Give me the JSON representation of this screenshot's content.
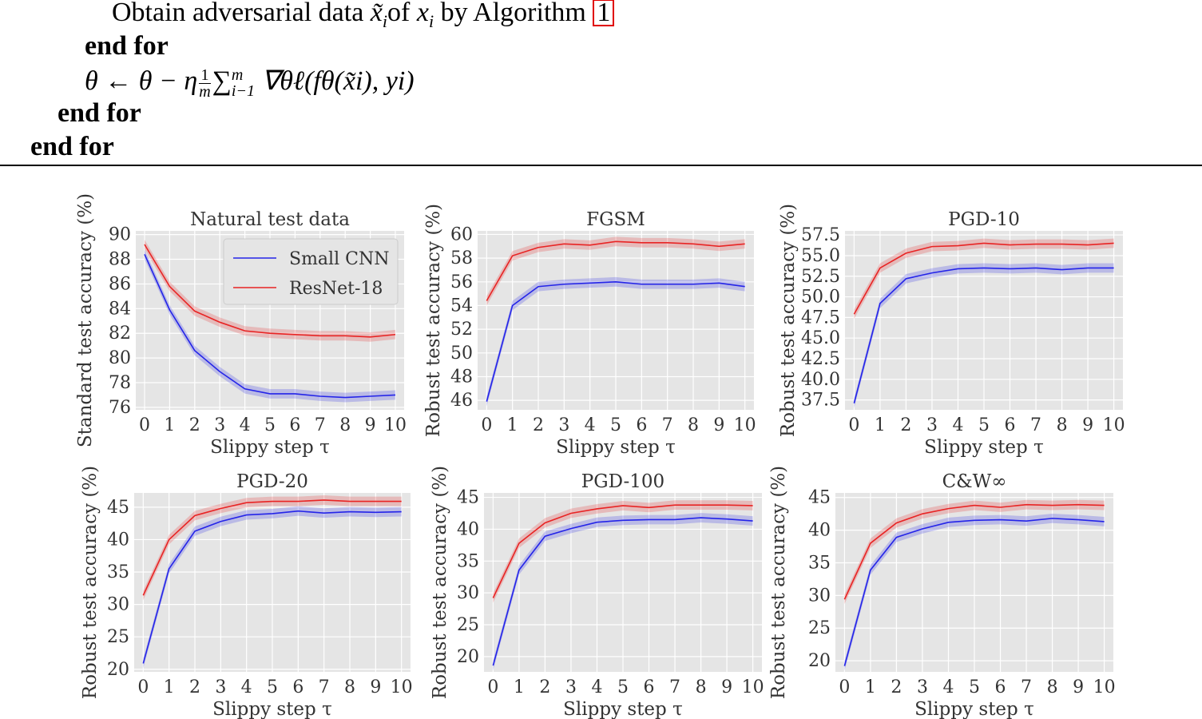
{
  "algorithm": {
    "line1_prefix": "Obtain adversarial data ",
    "line1_var": "x̃",
    "line1_sub": "i",
    "line1_mid": "of ",
    "line1_x": "x",
    "line1_xsub": "i",
    "line1_by": " by Algorithm ",
    "line1_ref": "1",
    "end_for_1": "end for",
    "update_rule": "θ ← θ − η",
    "frac_num": "1",
    "frac_den": "m",
    "sum": "∑",
    "sum_sup": "m",
    "sum_sub": "i−1",
    "update_tail": " ∇θℓ(fθ(x̃i), yi)",
    "end_for_2": "end for",
    "end_for_3": "end for"
  },
  "colors": {
    "small_cnn": "#2424e8",
    "resnet18": "#e82424",
    "plot_bg": "#e5e5e5",
    "grid": "#ffffff"
  },
  "chart_data": [
    {
      "type": "line",
      "title": "Natural test data",
      "xlabel": "Slippy step τ",
      "ylabel": "Standard test accuracy (%)",
      "x": [
        0,
        1,
        2,
        3,
        4,
        5,
        6,
        7,
        8,
        9,
        10
      ],
      "ylim": [
        75.8,
        90.3
      ],
      "yticks": [
        "76",
        "78",
        "80",
        "82",
        "84",
        "86",
        "88",
        "90"
      ],
      "ytick_values": [
        76,
        78,
        80,
        82,
        84,
        86,
        88,
        90
      ],
      "legend": "top-right",
      "series": [
        {
          "name": "Small CNN",
          "color": "#2424e8",
          "values": [
            88.4,
            83.9,
            80.6,
            78.9,
            77.5,
            77.1,
            77.1,
            76.9,
            76.8,
            76.9,
            77.0
          ]
        },
        {
          "name": "ResNet-18",
          "color": "#e82424",
          "values": [
            89.2,
            85.8,
            83.8,
            82.9,
            82.2,
            82.0,
            81.9,
            81.8,
            81.8,
            81.7,
            81.9
          ]
        }
      ]
    },
    {
      "type": "line",
      "title": "FGSM",
      "xlabel": "Slippy step τ",
      "ylabel": "Robust test accuracy (%)",
      "x": [
        0,
        1,
        2,
        3,
        4,
        5,
        6,
        7,
        8,
        9,
        10
      ],
      "ylim": [
        45.2,
        60.3
      ],
      "yticks": [
        "46",
        "48",
        "50",
        "52",
        "54",
        "56",
        "58",
        "60"
      ],
      "ytick_values": [
        46,
        48,
        50,
        52,
        54,
        56,
        58,
        60
      ],
      "series": [
        {
          "name": "Small CNN",
          "color": "#2424e8",
          "values": [
            45.9,
            54.0,
            55.6,
            55.8,
            55.9,
            56.0,
            55.8,
            55.8,
            55.8,
            55.9,
            55.6
          ]
        },
        {
          "name": "ResNet-18",
          "color": "#e82424",
          "values": [
            54.4,
            58.2,
            58.9,
            59.2,
            59.1,
            59.4,
            59.3,
            59.3,
            59.2,
            59.0,
            59.2
          ]
        }
      ]
    },
    {
      "type": "line",
      "title": "PGD-10",
      "xlabel": "Slippy step τ",
      "ylabel": "Robust test accuracy (%)",
      "x": [
        0,
        1,
        2,
        3,
        4,
        5,
        6,
        7,
        8,
        9,
        10
      ],
      "ylim": [
        36.3,
        58.0
      ],
      "yticks": [
        "37.5",
        "40.0",
        "42.5",
        "45.0",
        "47.5",
        "50.0",
        "52.5",
        "55.0",
        "57.5"
      ],
      "ytick_values": [
        37.5,
        40.0,
        42.5,
        45.0,
        47.5,
        50.0,
        52.5,
        55.0,
        57.5
      ],
      "series": [
        {
          "name": "Small CNN",
          "color": "#2424e8",
          "values": [
            37.1,
            49.2,
            52.2,
            52.9,
            53.4,
            53.5,
            53.4,
            53.5,
            53.3,
            53.5,
            53.5
          ]
        },
        {
          "name": "ResNet-18",
          "color": "#e82424",
          "values": [
            47.9,
            53.5,
            55.3,
            56.1,
            56.2,
            56.5,
            56.3,
            56.4,
            56.4,
            56.3,
            56.5
          ]
        }
      ]
    },
    {
      "type": "line",
      "title": "PGD-20",
      "xlabel": "Slippy step τ",
      "ylabel": "Robust test accuracy (%)",
      "x": [
        0,
        1,
        2,
        3,
        4,
        5,
        6,
        7,
        8,
        9,
        10
      ],
      "ylim": [
        19.6,
        47.2
      ],
      "yticks": [
        "20",
        "25",
        "30",
        "35",
        "40",
        "45"
      ],
      "ytick_values": [
        20,
        25,
        30,
        35,
        40,
        45
      ],
      "series": [
        {
          "name": "Small CNN",
          "color": "#2424e8",
          "values": [
            20.9,
            35.5,
            41.3,
            42.8,
            43.8,
            44.0,
            44.4,
            44.1,
            44.3,
            44.2,
            44.3
          ]
        },
        {
          "name": "ResNet-18",
          "color": "#e82424",
          "values": [
            31.4,
            40.0,
            43.7,
            44.8,
            45.7,
            45.9,
            45.9,
            46.1,
            45.9,
            45.9,
            45.9
          ]
        }
      ]
    },
    {
      "type": "line",
      "title": "PGD-100",
      "xlabel": "Slippy step τ",
      "ylabel": "Robust test accuracy (%)",
      "x": [
        0,
        1,
        2,
        3,
        4,
        5,
        6,
        7,
        8,
        9,
        10
      ],
      "ylim": [
        17.6,
        45.7
      ],
      "yticks": [
        "20",
        "25",
        "30",
        "35",
        "40",
        "45"
      ],
      "ytick_values": [
        20,
        25,
        30,
        35,
        40,
        45
      ],
      "series": [
        {
          "name": "Small CNN",
          "color": "#2424e8",
          "values": [
            18.6,
            33.6,
            38.9,
            40.1,
            41.1,
            41.4,
            41.5,
            41.5,
            41.8,
            41.6,
            41.3
          ]
        },
        {
          "name": "ResNet-18",
          "color": "#e82424",
          "values": [
            29.2,
            37.8,
            41.0,
            42.5,
            43.2,
            43.7,
            43.4,
            43.8,
            43.8,
            43.8,
            43.7
          ]
        }
      ]
    },
    {
      "type": "line",
      "title": "C&W∞",
      "xlabel": "Slippy step τ",
      "ylabel": "Robust test accuracy (%)",
      "x": [
        0,
        1,
        2,
        3,
        4,
        5,
        6,
        7,
        8,
        9,
        10
      ],
      "ylim": [
        18.3,
        45.7
      ],
      "yticks": [
        "20",
        "25",
        "30",
        "35",
        "40",
        "45"
      ],
      "ytick_values": [
        20,
        25,
        30,
        35,
        40,
        45
      ],
      "series": [
        {
          "name": "Small CNN",
          "color": "#2424e8",
          "values": [
            19.2,
            33.9,
            38.9,
            40.2,
            41.2,
            41.5,
            41.6,
            41.4,
            41.8,
            41.6,
            41.3
          ]
        },
        {
          "name": "ResNet-18",
          "color": "#e82424",
          "values": [
            29.4,
            38.0,
            41.1,
            42.5,
            43.3,
            43.8,
            43.5,
            43.9,
            43.8,
            43.9,
            43.8
          ]
        }
      ]
    }
  ]
}
